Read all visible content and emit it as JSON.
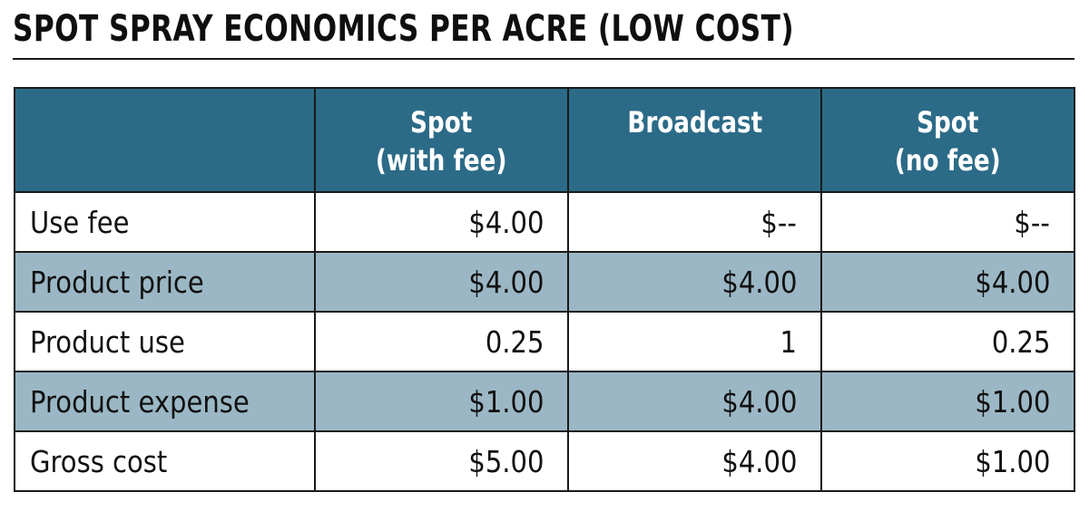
{
  "title": "SPOT SPRAY ECONOMICS PER ACRE (LOW COST)",
  "table": {
    "headers": [
      {
        "line1": "",
        "line2": ""
      },
      {
        "line1": "Spot",
        "line2": "(with fee)"
      },
      {
        "line1": "Broadcast",
        "line2": ""
      },
      {
        "line1": "Spot",
        "line2": "(no fee)"
      }
    ],
    "rows": [
      {
        "label": "Use fee",
        "values": [
          "$4.00",
          "$--",
          "$--"
        ]
      },
      {
        "label": "Product price",
        "values": [
          "$4.00",
          "$4.00",
          "$4.00"
        ]
      },
      {
        "label": "Product use",
        "values": [
          "0.25",
          "1",
          "0.25"
        ]
      },
      {
        "label": "Product expense",
        "values": [
          "$1.00",
          "$4.00",
          "$1.00"
        ]
      },
      {
        "label": "Gross cost",
        "values": [
          "$5.00",
          "$4.00",
          "$1.00"
        ]
      }
    ]
  },
  "colors": {
    "header_bg": "#2c6b87",
    "shaded_row_bg": "#9bb7c5",
    "plain_row_bg": "#ffffff",
    "border": "#1a1a1a"
  }
}
